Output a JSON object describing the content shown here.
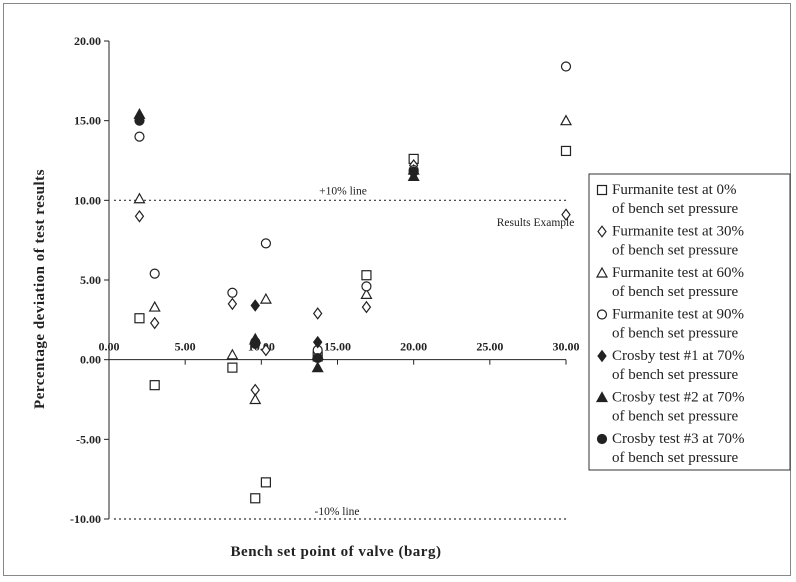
{
  "chart_data": {
    "type": "scatter",
    "xlabel": "Bench set point of valve  (barg)",
    "ylabel": "Percentage deviation of test results",
    "xlim": [
      0,
      30
    ],
    "ylim": [
      -10,
      20
    ],
    "x_ticks": [
      "0.00",
      "5.00",
      "10.00",
      "15.00",
      "20.00",
      "25.00",
      "30.00"
    ],
    "x_tick_values": [
      0,
      5,
      10,
      15,
      20,
      25,
      30
    ],
    "y_ticks": [
      "-10.00",
      "-5.00",
      "0.00",
      "5.00",
      "10.00",
      "15.00",
      "20.00"
    ],
    "y_tick_values": [
      -10,
      -5,
      0,
      5,
      10,
      15,
      20
    ],
    "grid": false,
    "legend_position": "right",
    "reference_lines": [
      {
        "y": 10,
        "label": "+10% line",
        "style": "dotted"
      },
      {
        "y": -10,
        "label": "-10% line",
        "style": "dotted"
      }
    ],
    "annotations": [
      {
        "text": "Results Example",
        "x": 28,
        "y": 8.5
      }
    ],
    "series": [
      {
        "name": "Furmanite test at 0% of bench set pressure",
        "line1": "Furmanite test at 0%",
        "line2": "of bench set pressure",
        "marker": "square-open",
        "points": [
          [
            2.0,
            2.6
          ],
          [
            3.0,
            -1.6
          ],
          [
            8.1,
            -0.5
          ],
          [
            9.6,
            -8.7
          ],
          [
            10.3,
            -7.7
          ],
          [
            13.7,
            0.2
          ],
          [
            16.9,
            5.3
          ],
          [
            20.0,
            12.6
          ],
          [
            30.0,
            13.1
          ]
        ]
      },
      {
        "name": "Furmanite test at 30% of bench set pressure",
        "line1": "Furmanite test at 30%",
        "line2": "of bench set pressure",
        "marker": "diamond-open",
        "points": [
          [
            2.0,
            9.0
          ],
          [
            3.0,
            2.3
          ],
          [
            8.1,
            3.5
          ],
          [
            9.6,
            -1.9
          ],
          [
            10.3,
            0.6
          ],
          [
            13.7,
            2.9
          ],
          [
            16.9,
            3.3
          ],
          [
            20.0,
            12.2
          ],
          [
            30.0,
            9.1
          ]
        ]
      },
      {
        "name": "Furmanite test at 60% of bench set pressure",
        "line1": "Furmanite test at 60%",
        "line2": "of bench set pressure",
        "marker": "triangle-open",
        "points": [
          [
            2.0,
            10.1
          ],
          [
            3.0,
            3.3
          ],
          [
            8.1,
            0.3
          ],
          [
            9.6,
            -2.5
          ],
          [
            10.3,
            3.8
          ],
          [
            13.7,
            0.3
          ],
          [
            16.9,
            4.1
          ],
          [
            20.0,
            11.9
          ],
          [
            30.0,
            15.0
          ]
        ]
      },
      {
        "name": "Furmanite test at 90% of bench set pressure",
        "line1": "Furmanite test at 90%",
        "line2": "of bench set pressure",
        "marker": "circle-open",
        "points": [
          [
            2.0,
            14.0
          ],
          [
            3.0,
            5.4
          ],
          [
            8.1,
            4.2
          ],
          [
            9.6,
            1.1
          ],
          [
            10.3,
            7.3
          ],
          [
            13.7,
            0.6
          ],
          [
            16.9,
            4.6
          ],
          [
            20.0,
            11.9
          ],
          [
            30.0,
            18.4
          ]
        ]
      },
      {
        "name": "Crosby test #1 at 70% of bench set pressure",
        "line1": "Crosby test #1 at 70%",
        "line2": "of bench set pressure",
        "marker": "diamond-filled",
        "points": [
          [
            2.0,
            15.2
          ],
          [
            9.6,
            3.4
          ],
          [
            13.7,
            1.1
          ]
        ]
      },
      {
        "name": "Crosby test #2 at 70% of bench set pressure",
        "line1": "Crosby test #2 at 70%",
        "line2": "of bench set pressure",
        "marker": "triangle-filled",
        "points": [
          [
            2.0,
            15.4
          ],
          [
            9.6,
            1.3
          ],
          [
            13.7,
            -0.5
          ],
          [
            20.0,
            11.5
          ]
        ]
      },
      {
        "name": "Crosby test #3 at 70% of bench set pressure",
        "line1": "Crosby test #3 at 70%",
        "line2": "of bench set pressure",
        "marker": "circle-filled",
        "points": [
          [
            2.0,
            15.0
          ],
          [
            9.6,
            1.0
          ],
          [
            13.7,
            0.1
          ],
          [
            20.0,
            11.8
          ]
        ]
      }
    ]
  }
}
